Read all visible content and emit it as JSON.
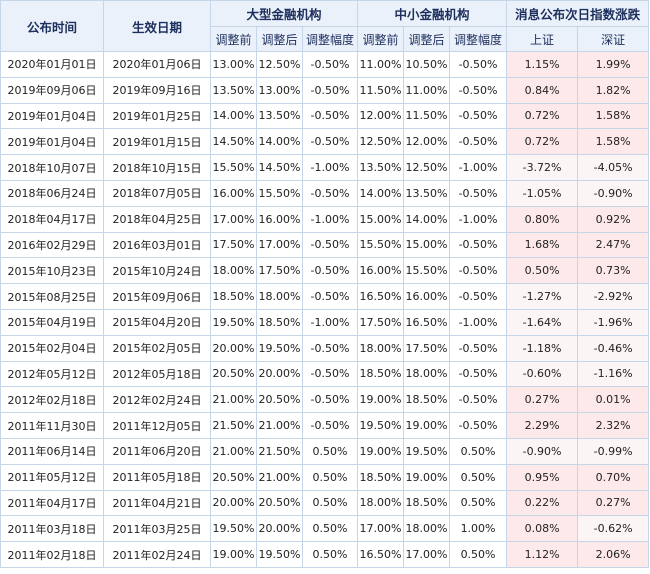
{
  "header": {
    "announce_date": "公布时间",
    "effective_date": "生效日期",
    "large_group": "大型金融机构",
    "small_group": "中小金融机构",
    "index_group": "消息公布次日指数涨跌",
    "before": "调整前",
    "after": "调整后",
    "change": "调整幅度",
    "shanghai": "上证",
    "shenzhen": "深证"
  },
  "rows": [
    {
      "announce": "2020年01月01日",
      "effective": "2020年01月06日",
      "lg_before": "13.00%",
      "lg_after": "12.50%",
      "lg_change": "-0.50%",
      "sm_before": "11.00%",
      "sm_after": "10.50%",
      "sm_change": "-0.50%",
      "sh": "1.15%",
      "sz": "1.99%"
    },
    {
      "announce": "2019年09月06日",
      "effective": "2019年09月16日",
      "lg_before": "13.50%",
      "lg_after": "13.00%",
      "lg_change": "-0.50%",
      "sm_before": "11.50%",
      "sm_after": "11.00%",
      "sm_change": "-0.50%",
      "sh": "0.84%",
      "sz": "1.82%"
    },
    {
      "announce": "2019年01月04日",
      "effective": "2019年01月25日",
      "lg_before": "14.00%",
      "lg_after": "13.50%",
      "lg_change": "-0.50%",
      "sm_before": "12.00%",
      "sm_after": "11.50%",
      "sm_change": "-0.50%",
      "sh": "0.72%",
      "sz": "1.58%"
    },
    {
      "announce": "2019年01月04日",
      "effective": "2019年01月15日",
      "lg_before": "14.50%",
      "lg_after": "14.00%",
      "lg_change": "-0.50%",
      "sm_before": "12.50%",
      "sm_after": "12.00%",
      "sm_change": "-0.50%",
      "sh": "0.72%",
      "sz": "1.58%"
    },
    {
      "announce": "2018年10月07日",
      "effective": "2018年10月15日",
      "lg_before": "15.50%",
      "lg_after": "14.50%",
      "lg_change": "-1.00%",
      "sm_before": "13.50%",
      "sm_after": "12.50%",
      "sm_change": "-1.00%",
      "sh": "-3.72%",
      "sz": "-4.05%"
    },
    {
      "announce": "2018年06月24日",
      "effective": "2018年07月05日",
      "lg_before": "16.00%",
      "lg_after": "15.50%",
      "lg_change": "-0.50%",
      "sm_before": "14.00%",
      "sm_after": "13.50%",
      "sm_change": "-0.50%",
      "sh": "-1.05%",
      "sz": "-0.90%"
    },
    {
      "announce": "2018年04月17日",
      "effective": "2018年04月25日",
      "lg_before": "17.00%",
      "lg_after": "16.00%",
      "lg_change": "-1.00%",
      "sm_before": "15.00%",
      "sm_after": "14.00%",
      "sm_change": "-1.00%",
      "sh": "0.80%",
      "sz": "0.92%"
    },
    {
      "announce": "2016年02月29日",
      "effective": "2016年03月01日",
      "lg_before": "17.50%",
      "lg_after": "17.00%",
      "lg_change": "-0.50%",
      "sm_before": "15.50%",
      "sm_after": "15.00%",
      "sm_change": "-0.50%",
      "sh": "1.68%",
      "sz": "2.47%"
    },
    {
      "announce": "2015年10月23日",
      "effective": "2015年10月24日",
      "lg_before": "18.00%",
      "lg_after": "17.50%",
      "lg_change": "-0.50%",
      "sm_before": "16.00%",
      "sm_after": "15.50%",
      "sm_change": "-0.50%",
      "sh": "0.50%",
      "sz": "0.73%"
    },
    {
      "announce": "2015年08月25日",
      "effective": "2015年09月06日",
      "lg_before": "18.50%",
      "lg_after": "18.00%",
      "lg_change": "-0.50%",
      "sm_before": "16.50%",
      "sm_after": "16.00%",
      "sm_change": "-0.50%",
      "sh": "-1.27%",
      "sz": "-2.92%"
    },
    {
      "announce": "2015年04月19日",
      "effective": "2015年04月20日",
      "lg_before": "19.50%",
      "lg_after": "18.50%",
      "lg_change": "-1.00%",
      "sm_before": "17.50%",
      "sm_after": "16.50%",
      "sm_change": "-1.00%",
      "sh": "-1.64%",
      "sz": "-1.96%"
    },
    {
      "announce": "2015年02月04日",
      "effective": "2015年02月05日",
      "lg_before": "20.00%",
      "lg_after": "19.50%",
      "lg_change": "-0.50%",
      "sm_before": "18.00%",
      "sm_after": "17.50%",
      "sm_change": "-0.50%",
      "sh": "-1.18%",
      "sz": "-0.46%"
    },
    {
      "announce": "2012年05月12日",
      "effective": "2012年05月18日",
      "lg_before": "20.50%",
      "lg_after": "20.00%",
      "lg_change": "-0.50%",
      "sm_before": "18.50%",
      "sm_after": "18.00%",
      "sm_change": "-0.50%",
      "sh": "-0.60%",
      "sz": "-1.16%"
    },
    {
      "announce": "2012年02月18日",
      "effective": "2012年02月24日",
      "lg_before": "21.00%",
      "lg_after": "20.50%",
      "lg_change": "-0.50%",
      "sm_before": "19.00%",
      "sm_after": "18.50%",
      "sm_change": "-0.50%",
      "sh": "0.27%",
      "sz": "0.01%"
    },
    {
      "announce": "2011年11月30日",
      "effective": "2011年12月05日",
      "lg_before": "21.50%",
      "lg_after": "21.00%",
      "lg_change": "-0.50%",
      "sm_before": "19.50%",
      "sm_after": "19.00%",
      "sm_change": "-0.50%",
      "sh": "2.29%",
      "sz": "2.32%"
    },
    {
      "announce": "2011年06月14日",
      "effective": "2011年06月20日",
      "lg_before": "21.00%",
      "lg_after": "21.50%",
      "lg_change": "0.50%",
      "sm_before": "19.00%",
      "sm_after": "19.50%",
      "sm_change": "0.50%",
      "sh": "-0.90%",
      "sz": "-0.99%"
    },
    {
      "announce": "2011年05月12日",
      "effective": "2011年05月18日",
      "lg_before": "20.50%",
      "lg_after": "21.00%",
      "lg_change": "0.50%",
      "sm_before": "18.50%",
      "sm_after": "19.00%",
      "sm_change": "0.50%",
      "sh": "0.95%",
      "sz": "0.70%"
    },
    {
      "announce": "2011年04月17日",
      "effective": "2011年04月21日",
      "lg_before": "20.00%",
      "lg_after": "20.50%",
      "lg_change": "0.50%",
      "sm_before": "18.00%",
      "sm_after": "18.50%",
      "sm_change": "0.50%",
      "sh": "0.22%",
      "sz": "0.27%"
    },
    {
      "announce": "2011年03月18日",
      "effective": "2011年03月25日",
      "lg_before": "19.50%",
      "lg_after": "20.00%",
      "lg_change": "0.50%",
      "sm_before": "17.00%",
      "sm_after": "18.00%",
      "sm_change": "1.00%",
      "sh": "0.08%",
      "sz": "-0.62%"
    },
    {
      "announce": "2011年02月18日",
      "effective": "2011年02月24日",
      "lg_before": "19.00%",
      "lg_after": "19.50%",
      "lg_change": "0.50%",
      "sm_before": "16.50%",
      "sm_after": "17.00%",
      "sm_change": "0.50%",
      "sh": "1.12%",
      "sz": "2.06%"
    }
  ],
  "colors": {
    "rise": "#e60000",
    "fall": "#009900",
    "header_bg": "#eaf1fb",
    "border": "#c5d6e8"
  }
}
